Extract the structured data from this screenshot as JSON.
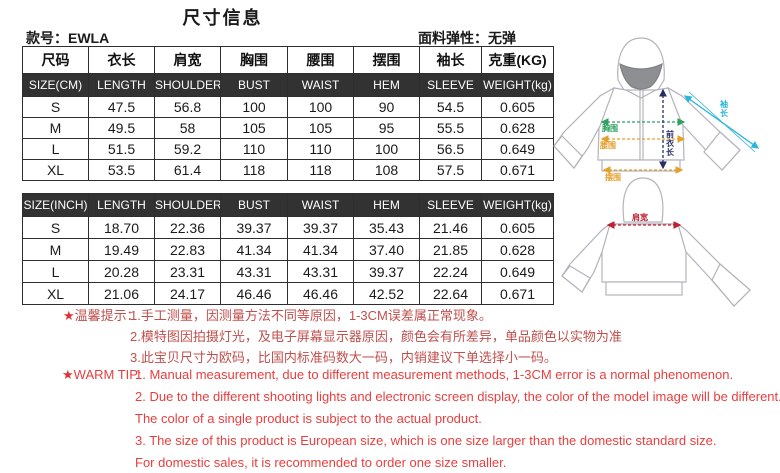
{
  "header": {
    "title": "尺寸信息",
    "style_no": "款号：EWLA",
    "fabric_elasticity": "面料弹性：无弹"
  },
  "table_cm": {
    "cn_headers": [
      "尺码",
      "衣长",
      "肩宽",
      "胸围",
      "腰围",
      "摆围",
      "袖长",
      "克重(KG)"
    ],
    "en_headers": [
      "SIZE(CM)",
      "LENGTH",
      "SHOULDER",
      "BUST",
      "WAIST",
      "HEM",
      "SLEEVE",
      "WEIGHT(kg)"
    ],
    "rows": [
      [
        "S",
        "47.5",
        "56.8",
        "100",
        "100",
        "90",
        "54.5",
        "0.605"
      ],
      [
        "M",
        "49.5",
        "58",
        "105",
        "105",
        "95",
        "55.5",
        "0.628"
      ],
      [
        "L",
        "51.5",
        "59.2",
        "110",
        "110",
        "100",
        "56.5",
        "0.649"
      ],
      [
        "XL",
        "53.5",
        "61.4",
        "118",
        "118",
        "108",
        "57.5",
        "0.671"
      ]
    ]
  },
  "table_inch": {
    "en_headers": [
      "SIZE(INCH)",
      "LENGTH",
      "SHOULDER",
      "BUST",
      "WAIST",
      "HEM",
      "SLEEVE",
      "WEIGHT(kg)"
    ],
    "rows": [
      [
        "S",
        "18.70",
        "22.36",
        "39.37",
        "39.37",
        "35.43",
        "21.46",
        "0.605"
      ],
      [
        "M",
        "19.49",
        "22.83",
        "41.34",
        "41.34",
        "37.40",
        "21.85",
        "0.628"
      ],
      [
        "L",
        "20.28",
        "23.31",
        "43.31",
        "43.31",
        "39.37",
        "22.24",
        "0.649"
      ],
      [
        "XL",
        "21.06",
        "24.17",
        "46.46",
        "46.46",
        "42.52",
        "22.64",
        "0.671"
      ]
    ]
  },
  "notes_cn": {
    "star": "★",
    "prefix": "温馨提示：",
    "lines": [
      "1.手工测量，因测量方法不同等原因，1-3CM误差属正常现象。",
      "2.模特图因拍摄灯光，及电子屏幕显示器原因，颜色会有所差异，单品颜色以实物为准",
      "3.此宝贝尺寸为欧码，比国内标准码数大一码，内销建议下单选择小一码。"
    ]
  },
  "notes_en": {
    "star": "★",
    "prefix": "WARM TIP:",
    "lines": [
      "1. Manual measurement, due to different measurement methods, 1-3CM error is a normal phenomenon.",
      "2. Due to the different shooting lights and electronic screen display, the color of the model image will be different.",
      "The color of a single product is subject to the actual product.",
      "3. The size of this product is European size, which is one size larger than the domestic standard size.",
      "For domestic sales, it is recommended to order one size smaller."
    ]
  },
  "diagram": {
    "front": {
      "bust_label": "胸围",
      "waist_label": "腰围",
      "hem_label": "摆围",
      "front_length_label": "前衣长",
      "sleeve_label": "袖长"
    },
    "back": {
      "shoulder_label": "肩宽"
    }
  },
  "colors": {
    "header_row_bg": "#323232",
    "note_cn_text": "#c0504d",
    "note_en_text": "#e83e3e",
    "arrow_bust": "#2fa05f",
    "arrow_waist_hem": "#e5a02c",
    "arrow_front_length": "#272e66",
    "arrow_sleeve": "#2ab5d9",
    "arrow_shoulder": "#c0202f"
  }
}
